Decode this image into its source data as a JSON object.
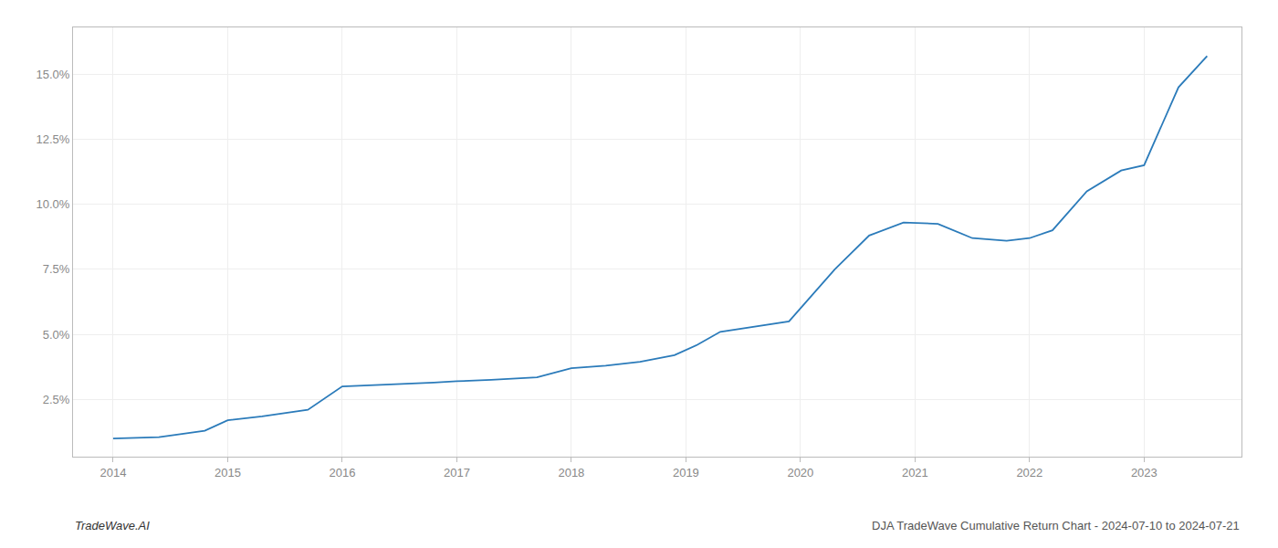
{
  "chart_data": {
    "type": "line",
    "x": [
      2014.0,
      2014.4,
      2014.8,
      2015.0,
      2015.3,
      2015.7,
      2016.0,
      2016.3,
      2016.5,
      2016.8,
      2017.0,
      2017.3,
      2017.7,
      2018.0,
      2018.3,
      2018.6,
      2018.9,
      2019.1,
      2019.3,
      2019.6,
      2019.75,
      2019.9,
      2020.1,
      2020.3,
      2020.6,
      2020.9,
      2021.2,
      2021.5,
      2021.8,
      2022.0,
      2022.2,
      2022.5,
      2022.8,
      2023.0,
      2023.3,
      2023.55
    ],
    "values": [
      1.0,
      1.05,
      1.3,
      1.7,
      1.85,
      2.1,
      3.0,
      3.05,
      3.1,
      3.15,
      3.2,
      3.25,
      3.35,
      3.7,
      3.8,
      3.95,
      4.2,
      4.6,
      5.1,
      5.3,
      5.4,
      5.5,
      6.5,
      7.5,
      8.8,
      9.3,
      9.25,
      8.7,
      8.6,
      8.7,
      9.0,
      10.5,
      11.3,
      11.5,
      14.5,
      15.7
    ],
    "color": "#2b7bba",
    "xlim": [
      2013.65,
      2023.85
    ],
    "ylim": [
      0.3,
      16.8
    ],
    "xticks": [
      2014,
      2015,
      2016,
      2017,
      2018,
      2019,
      2020,
      2021,
      2022,
      2023
    ],
    "yticks": [
      {
        "value": 2.5,
        "label": "2.5%"
      },
      {
        "value": 5.0,
        "label": "5.0%"
      },
      {
        "value": 7.5,
        "label": "7.5%"
      },
      {
        "value": 10.0,
        "label": "10.0%"
      },
      {
        "value": 12.5,
        "label": "12.5%"
      },
      {
        "value": 15.0,
        "label": "15.0%"
      }
    ],
    "grid": true,
    "annotations": [
      "TradeWave.AI",
      "DJA TradeWave Cumulative Return Chart - 2024-07-10 to 2024-07-21"
    ]
  }
}
